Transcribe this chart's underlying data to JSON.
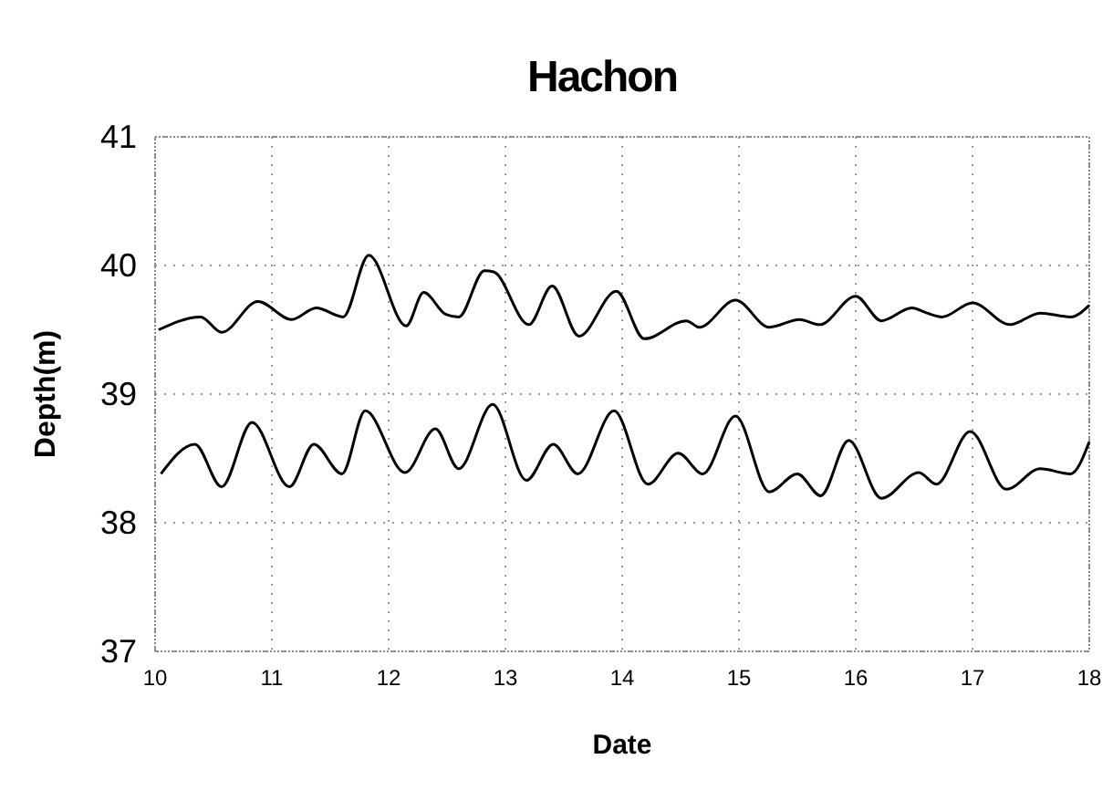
{
  "chart_data": {
    "type": "line",
    "title": "Hachon",
    "xlabel": "Date",
    "ylabel": "Depth(m)",
    "xlim": [
      10,
      18
    ],
    "xticks": [
      10,
      11,
      12,
      13,
      14,
      15,
      16,
      17,
      18
    ],
    "ylim": [
      37,
      41
    ],
    "yticks": [
      37,
      38,
      39,
      40,
      41
    ],
    "grid": true,
    "marker": "none",
    "line_style": "solid",
    "series": [
      {
        "color": "#000000",
        "x": [
          10.03,
          10.39,
          10.57,
          10.88,
          11.17,
          11.38,
          11.61,
          11.83,
          12.15,
          12.3,
          12.49,
          12.6,
          12.82,
          12.9,
          13.2,
          13.4,
          13.63,
          13.95,
          14.19,
          14.55,
          14.66,
          14.97,
          15.26,
          15.52,
          15.69,
          16.0,
          16.22,
          16.48,
          16.61,
          16.74,
          17.0,
          17.32,
          17.58,
          17.84,
          18.0
        ],
        "values": [
          39.5,
          39.6,
          39.48,
          39.72,
          39.58,
          39.67,
          39.6,
          40.08,
          39.53,
          39.79,
          39.62,
          39.6,
          39.96,
          39.95,
          39.54,
          39.84,
          39.45,
          39.8,
          39.43,
          39.57,
          39.52,
          39.73,
          39.52,
          39.58,
          39.54,
          39.76,
          39.57,
          39.67,
          39.63,
          39.6,
          39.71,
          39.54,
          39.63,
          39.6,
          39.69
        ]
      },
      {
        "color": "#000000",
        "x": [
          10.05,
          10.34,
          10.57,
          10.83,
          11.15,
          11.36,
          11.6,
          11.8,
          12.14,
          12.4,
          12.6,
          12.89,
          13.18,
          13.41,
          13.62,
          13.93,
          14.22,
          14.48,
          14.69,
          14.97,
          15.26,
          15.5,
          15.7,
          15.94,
          16.22,
          16.54,
          16.69,
          16.98,
          17.29,
          17.58,
          17.84,
          18.0
        ],
        "values": [
          38.38,
          38.61,
          38.28,
          38.78,
          38.28,
          38.61,
          38.38,
          38.87,
          38.39,
          38.73,
          38.42,
          38.92,
          38.33,
          38.61,
          38.38,
          38.87,
          38.3,
          38.54,
          38.38,
          38.83,
          38.24,
          38.38,
          38.21,
          38.64,
          38.19,
          38.39,
          38.3,
          38.71,
          38.26,
          38.42,
          38.38,
          38.63
        ]
      }
    ]
  }
}
